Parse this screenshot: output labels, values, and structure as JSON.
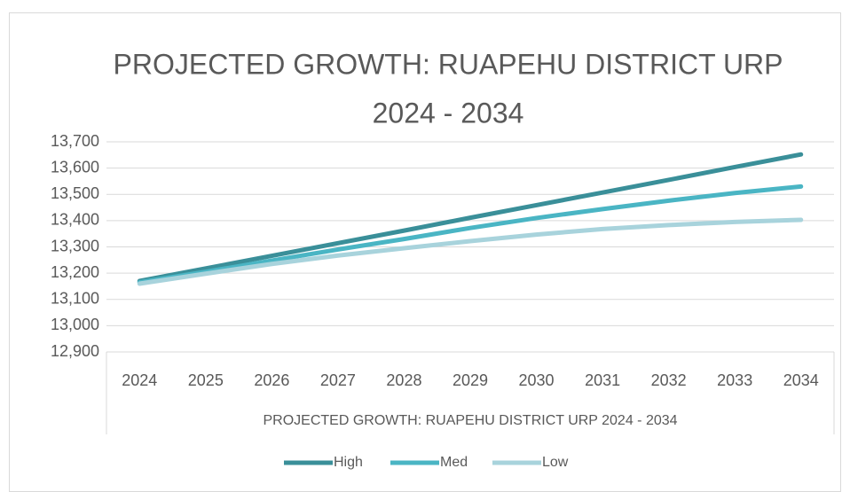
{
  "chart_data": {
    "type": "line",
    "title": "PROJECTED GROWTH: RUAPEHU DISTRICT URP",
    "subtitle": "2024 - 2034",
    "x_label": "PROJECTED GROWTH: RUAPEHU DISTRICT URP 2024 - 2034",
    "categories": [
      "2024",
      "2025",
      "2026",
      "2027",
      "2028",
      "2029",
      "2030",
      "2031",
      "2032",
      "2033",
      "2034"
    ],
    "series": [
      {
        "name": "High",
        "color": "#3a8f99",
        "values": [
          13170,
          13218,
          13266,
          13314,
          13362,
          13411,
          13459,
          13507,
          13555,
          13604,
          13652
        ]
      },
      {
        "name": "Med",
        "color": "#4ab5c4",
        "values": [
          13165,
          13205,
          13248,
          13290,
          13330,
          13372,
          13410,
          13444,
          13476,
          13505,
          13530
        ]
      },
      {
        "name": "Low",
        "color": "#a8d3dc",
        "values": [
          13160,
          13198,
          13235,
          13267,
          13295,
          13322,
          13347,
          13368,
          13383,
          13395,
          13403
        ]
      }
    ],
    "ylim": [
      12900,
      13700
    ],
    "yticks": [
      {
        "value": 12900,
        "label": "12,900"
      },
      {
        "value": 13000,
        "label": "13,000"
      },
      {
        "value": 13100,
        "label": "13,100"
      },
      {
        "value": 13200,
        "label": "13,200"
      },
      {
        "value": 13300,
        "label": "13,300"
      },
      {
        "value": 13400,
        "label": "13,400"
      },
      {
        "value": 13500,
        "label": "13,500"
      },
      {
        "value": 13600,
        "label": "13,600"
      },
      {
        "value": 13700,
        "label": "13,700"
      }
    ],
    "grid": true,
    "legend": "bottom"
  }
}
